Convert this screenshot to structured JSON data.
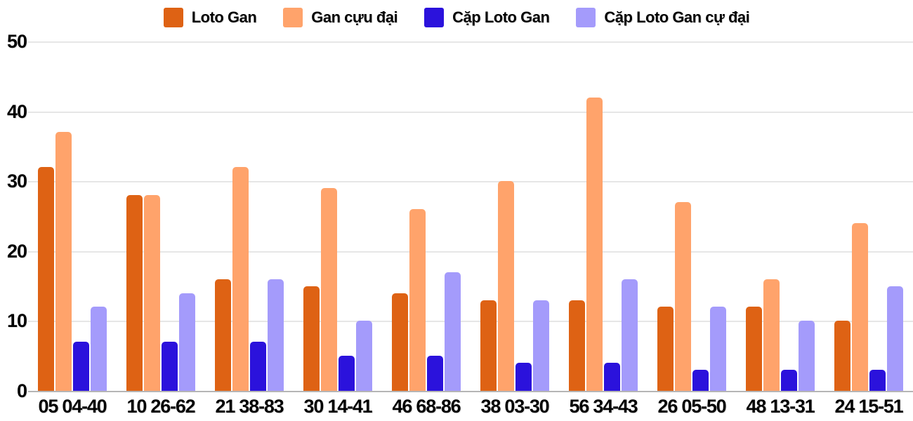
{
  "chart_data": {
    "type": "bar",
    "title": "",
    "xlabel": "",
    "ylabel": "",
    "ylim": [
      0,
      50
    ],
    "y_ticks": [
      0,
      10,
      20,
      30,
      40,
      50
    ],
    "grid": true,
    "legend_position": "top",
    "categories": [
      "05 04-40",
      "10 26-62",
      "21 38-83",
      "30 14-41",
      "46 68-86",
      "38 03-30",
      "56 34-43",
      "26 05-50",
      "48 13-31",
      "24 15-51"
    ],
    "series": [
      {
        "key": "loto-gan",
        "name": "Loto Gan",
        "color": "#DE6214",
        "values": [
          32,
          28,
          16,
          15,
          14,
          13,
          13,
          12,
          12,
          10
        ]
      },
      {
        "key": "gan-cuu-dai",
        "name": "Gan cựu đại",
        "color": "#FFA36B",
        "values": [
          37,
          28,
          32,
          29,
          26,
          30,
          42,
          27,
          16,
          24
        ]
      },
      {
        "key": "cap-loto-gan",
        "name": "Cặp Loto Gan",
        "color": "#2B12DC",
        "values": [
          7,
          7,
          7,
          5,
          5,
          4,
          4,
          3,
          3,
          3
        ]
      },
      {
        "key": "cap-loto-gan-cu-dai",
        "name": "Cặp Loto Gan cự đại",
        "color": "#A49BFB",
        "values": [
          12,
          14,
          16,
          10,
          17,
          13,
          16,
          12,
          10,
          15
        ]
      }
    ]
  },
  "colors": {
    "gridline": "#E6E6E6",
    "axis": "#B5B5B5",
    "text": "#000000",
    "background": "#FFFFFF"
  }
}
